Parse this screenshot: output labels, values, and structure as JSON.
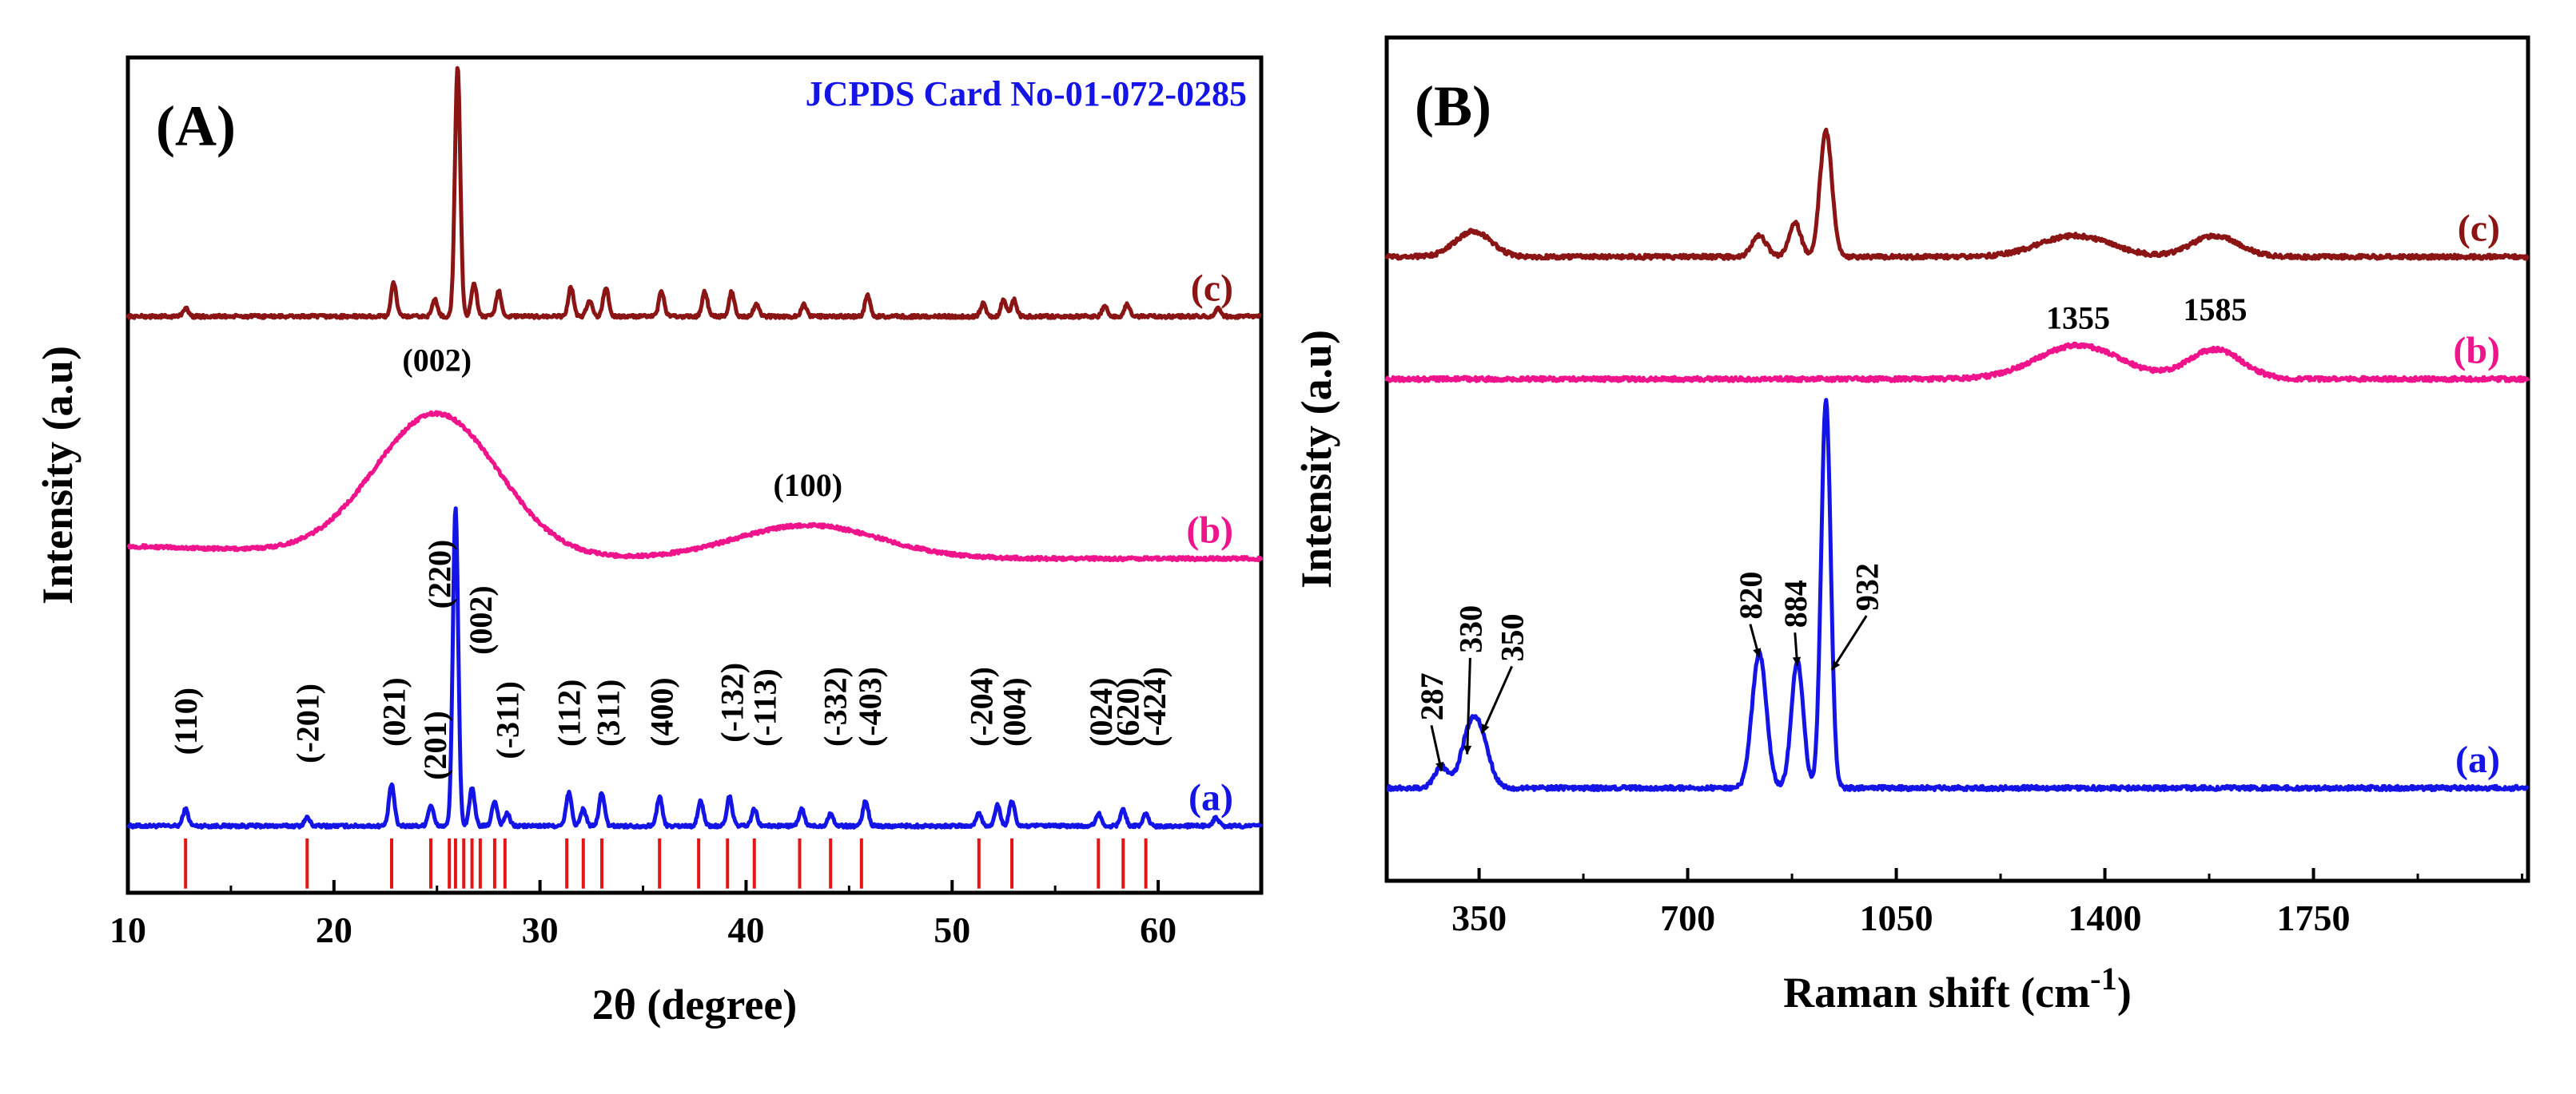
{
  "chart_data": [
    {
      "panel": "(A)",
      "type": "line",
      "xlabel": "2θ (degree)",
      "ylabel": "Intensity (a.u)",
      "xlim": [
        10,
        65
      ],
      "xticks": [
        10,
        20,
        30,
        40,
        50,
        60
      ],
      "grid": false,
      "annotation": "JCPDS Card No-01-072-0285",
      "colors": {
        "a": "#1414e6",
        "b": "#f0148c",
        "c": "#8b1414",
        "ref": "#e61414"
      },
      "series": [
        {
          "name": "(a)",
          "label": "(a)",
          "baseline": 0.08,
          "peaks": [
            [
              12.8,
              0.02
            ],
            [
              18.7,
              0.01
            ],
            [
              22.8,
              0.05
            ],
            [
              24.7,
              0.025
            ],
            [
              25.9,
              0.38
            ],
            [
              26.7,
              0.045
            ],
            [
              27.8,
              0.03
            ],
            [
              28.4,
              0.015
            ],
            [
              31.4,
              0.04
            ],
            [
              32.1,
              0.02
            ],
            [
              33.0,
              0.04
            ],
            [
              35.8,
              0.035
            ],
            [
              37.8,
              0.03
            ],
            [
              39.2,
              0.035
            ],
            [
              40.4,
              0.02
            ],
            [
              42.7,
              0.02
            ],
            [
              44.1,
              0.015
            ],
            [
              45.8,
              0.03
            ],
            [
              51.3,
              0.015
            ],
            [
              52.2,
              0.025
            ],
            [
              52.9,
              0.03
            ],
            [
              57.1,
              0.015
            ],
            [
              58.3,
              0.02
            ],
            [
              59.4,
              0.015
            ],
            [
              62.8,
              0.01
            ]
          ]
        },
        {
          "name": "(b)",
          "label": "(b)",
          "baseline": 0.4,
          "broad": [
            [
              25.0,
              0.17,
              3.0
            ],
            [
              43.0,
              0.04,
              3.5
            ]
          ]
        },
        {
          "name": "(c)",
          "label": "(c)",
          "baseline": 0.69,
          "peaks": [
            [
              12.8,
              0.01
            ],
            [
              22.9,
              0.04
            ],
            [
              24.9,
              0.02
            ],
            [
              26.0,
              0.3
            ],
            [
              26.8,
              0.04
            ],
            [
              28.0,
              0.03
            ],
            [
              31.5,
              0.035
            ],
            [
              32.4,
              0.02
            ],
            [
              33.2,
              0.035
            ],
            [
              35.9,
              0.03
            ],
            [
              38.0,
              0.03
            ],
            [
              39.3,
              0.03
            ],
            [
              40.5,
              0.015
            ],
            [
              42.8,
              0.015
            ],
            [
              45.9,
              0.025
            ],
            [
              51.5,
              0.015
            ],
            [
              52.5,
              0.02
            ],
            [
              53.0,
              0.02
            ],
            [
              57.4,
              0.012
            ],
            [
              58.5,
              0.015
            ],
            [
              62.9,
              0.01
            ]
          ]
        }
      ],
      "reference_lines": [
        12.8,
        18.7,
        22.8,
        24.7,
        25.6,
        25.9,
        26.3,
        26.7,
        27.1,
        27.8,
        28.3,
        31.3,
        32.1,
        33.0,
        35.8,
        37.7,
        39.1,
        40.4,
        42.6,
        44.1,
        45.6,
        51.3,
        52.9,
        57.1,
        58.3,
        59.4
      ],
      "peak_labels": [
        {
          "text": "(110)",
          "x": 12.8,
          "y": 0.165,
          "rotate": -90
        },
        {
          "text": "(-201)",
          "x": 18.7,
          "y": 0.155,
          "rotate": -90
        },
        {
          "text": "(021)",
          "x": 22.9,
          "y": 0.175,
          "rotate": -90
        },
        {
          "text": "(201)",
          "x": 24.9,
          "y": 0.135,
          "rotate": -90
        },
        {
          "text": "(220)",
          "x": 25.1,
          "y": 0.34,
          "rotate": -90
        },
        {
          "text": "(002)",
          "x": 27.1,
          "y": 0.285,
          "rotate": -90
        },
        {
          "text": "(-311)",
          "x": 28.4,
          "y": 0.16,
          "rotate": -90
        },
        {
          "text": "(112)",
          "x": 31.4,
          "y": 0.175,
          "rotate": -90
        },
        {
          "text": "(311)",
          "x": 33.3,
          "y": 0.175,
          "rotate": -90
        },
        {
          "text": "(400)",
          "x": 35.9,
          "y": 0.175,
          "rotate": -90
        },
        {
          "text": "(-132)",
          "x": 39.3,
          "y": 0.18,
          "rotate": -90
        },
        {
          "text": "(-113)",
          "x": 40.9,
          "y": 0.175,
          "rotate": -90
        },
        {
          "text": "(-332)",
          "x": 44.3,
          "y": 0.175,
          "rotate": -90
        },
        {
          "text": "(-403)",
          "x": 46.0,
          "y": 0.175,
          "rotate": -90
        },
        {
          "text": "(-204)",
          "x": 51.4,
          "y": 0.175,
          "rotate": -90
        },
        {
          "text": "(004)",
          "x": 53.0,
          "y": 0.175,
          "rotate": -90
        },
        {
          "text": "(024)",
          "x": 57.2,
          "y": 0.175,
          "rotate": -90
        },
        {
          "text": "(620)",
          "x": 58.5,
          "y": 0.175,
          "rotate": -90
        },
        {
          "text": "(-424)",
          "x": 59.8,
          "y": 0.175,
          "rotate": -90
        },
        {
          "text": "(002)",
          "x": 25.0,
          "y": 0.625,
          "rotate": 0
        },
        {
          "text": "(100)",
          "x": 43.0,
          "y": 0.475,
          "rotate": 0
        }
      ]
    },
    {
      "panel": "(B)",
      "type": "line",
      "xlabel": "Raman shift (cm",
      "xlabel_sup": "-1",
      "xlabel_end": ")",
      "ylabel": "Intensity (a.u)",
      "xlim": [
        195,
        2110
      ],
      "xticks": [
        350,
        700,
        1050,
        1400,
        1750
      ],
      "grid": false,
      "colors": {
        "a": "#1414e6",
        "b": "#f0148c",
        "c": "#8b1414"
      },
      "series": [
        {
          "name": "(a)",
          "label": "(a)",
          "baseline": 0.11,
          "peaks": [
            [
              287,
              0.025,
              12
            ],
            [
              330,
              0.04,
              14
            ],
            [
              350,
              0.065,
              16
            ],
            [
              820,
              0.16,
              12
            ],
            [
              884,
              0.15,
              10
            ],
            [
              932,
              0.46,
              8
            ]
          ]
        },
        {
          "name": "(b)",
          "label": "(b)",
          "baseline": 0.595,
          "peaks": [
            [
              1355,
              0.04,
              70
            ],
            [
              1585,
              0.035,
              45
            ]
          ]
        },
        {
          "name": "(c)",
          "label": "(c)",
          "baseline": 0.74,
          "peaks": [
            [
              340,
              0.03,
              30
            ],
            [
              820,
              0.025,
              12
            ],
            [
              880,
              0.04,
              10
            ],
            [
              932,
              0.15,
              10
            ],
            [
              1350,
              0.025,
              60
            ],
            [
              1585,
              0.025,
              40
            ]
          ]
        }
      ],
      "peak_labels": [
        {
          "text": "287",
          "x": 270,
          "y": 0.19,
          "rotate": -90,
          "arrow_to": [
            287,
            0.13
          ]
        },
        {
          "text": "330",
          "x": 335,
          "y": 0.27,
          "rotate": -90,
          "arrow_to": [
            330,
            0.15
          ]
        },
        {
          "text": "350",
          "x": 405,
          "y": 0.26,
          "rotate": -90,
          "arrow_to": [
            355,
            0.175
          ]
        },
        {
          "text": "820",
          "x": 805,
          "y": 0.31,
          "rotate": -90,
          "arrow_to": [
            820,
            0.265
          ]
        },
        {
          "text": "884",
          "x": 880,
          "y": 0.3,
          "rotate": -90,
          "arrow_to": [
            884,
            0.255
          ]
        },
        {
          "text": "932",
          "x": 1000,
          "y": 0.32,
          "rotate": -90,
          "arrow_to": [
            942,
            0.25
          ]
        },
        {
          "text": "1355",
          "x": 1355,
          "y": 0.655,
          "rotate": 0
        },
        {
          "text": "1585",
          "x": 1585,
          "y": 0.665,
          "rotate": 0
        }
      ]
    }
  ]
}
